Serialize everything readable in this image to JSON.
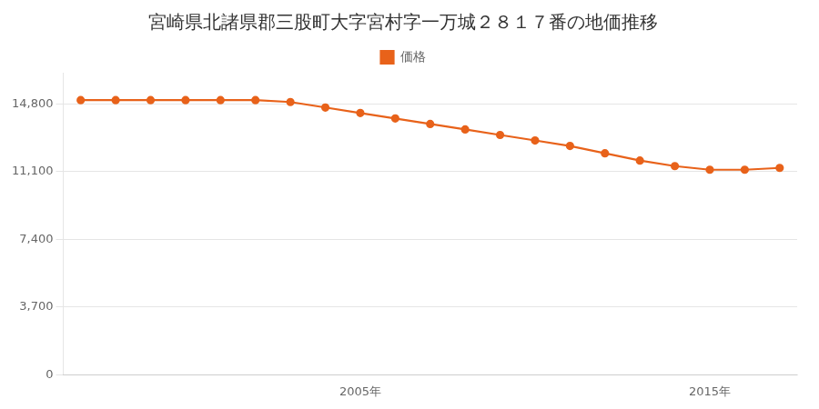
{
  "chart_data": {
    "type": "line",
    "title": "宮崎県北諸県郡三股町大字宮村字一万城２８１７番の地価推移",
    "x": [
      1997,
      1998,
      1999,
      2000,
      2001,
      2002,
      2003,
      2004,
      2005,
      2006,
      2007,
      2008,
      2009,
      2010,
      2011,
      2012,
      2013,
      2014,
      2015,
      2016,
      2017
    ],
    "series": [
      {
        "name": "価格",
        "color": "#E8621A",
        "marker": "circle",
        "line_style": "solid",
        "values": [
          15000,
          15000,
          15000,
          15000,
          15000,
          15000,
          14900,
          14600,
          14300,
          14000,
          13700,
          13400,
          13100,
          12800,
          12500,
          12100,
          11700,
          11400,
          11200,
          11200,
          11300
        ]
      }
    ],
    "xlim": [
      1996.5,
      2017.5
    ],
    "xticks": [
      {
        "value": 2005,
        "label": "2005年"
      },
      {
        "value": 2015,
        "label": "2015年"
      }
    ],
    "ylim": [
      0,
      16500
    ],
    "yticks": [
      0,
      {
        "value": 3700,
        "label": "3,700"
      },
      {
        "value": 7400,
        "label": "7,400"
      },
      {
        "value": 11100,
        "label": "11,100"
      },
      {
        "value": 14800,
        "label": "14,800"
      }
    ],
    "grid": "y",
    "legend": "top"
  }
}
